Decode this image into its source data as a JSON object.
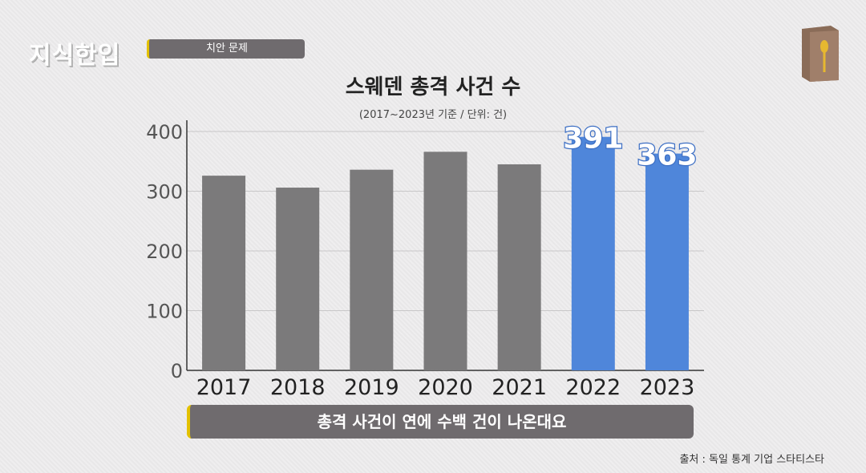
{
  "header": {
    "logo": "지식한입",
    "tag": "치안 문제"
  },
  "chart_data": {
    "type": "bar",
    "title": "스웨덴 총격 사건 수",
    "subtitle": "(2017~2023년 기준 / 단위: 건)",
    "categories": [
      "2017",
      "2018",
      "2019",
      "2020",
      "2021",
      "2022",
      "2023"
    ],
    "values": [
      326,
      306,
      336,
      366,
      345,
      391,
      363
    ],
    "data_labels": {
      "2022": "391",
      "2023": "363"
    },
    "yticks": [
      "0",
      "100",
      "200",
      "300",
      "400"
    ],
    "ylim": [
      0,
      400
    ],
    "grid": true,
    "colors": {
      "default": "#7b7a7b",
      "highlight": "#4f86da"
    },
    "highlighted": [
      "2022",
      "2023"
    ]
  },
  "caption": "총격 사건이 연에 수백 건이 나온대요",
  "source": "출처 : 독일 통계 기업 스타티스타"
}
